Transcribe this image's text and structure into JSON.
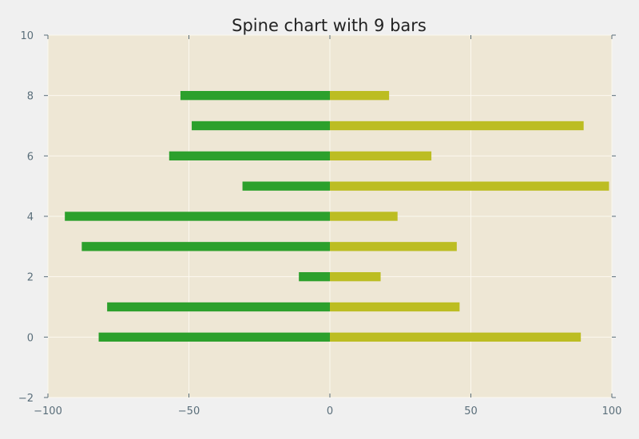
{
  "chart_data": {
    "type": "bar",
    "orientation": "horizontal",
    "title": "Spine chart with 9 bars",
    "xlabel": "",
    "ylabel": "",
    "xlim": [
      -100,
      100
    ],
    "ylim": [
      -2,
      10
    ],
    "x_ticks": [
      -100,
      -50,
      0,
      50,
      100
    ],
    "x_tick_labels": [
      "−100",
      "−50",
      "0",
      "50",
      "100"
    ],
    "y_ticks": [
      -2,
      0,
      2,
      4,
      6,
      8,
      10
    ],
    "y_tick_labels": [
      "−2",
      "0",
      "2",
      "4",
      "6",
      "8",
      "10"
    ],
    "grid": true,
    "legend": "none",
    "categories": [
      0,
      1,
      2,
      3,
      4,
      5,
      6,
      7,
      8
    ],
    "series": [
      {
        "color": "#2ca02c",
        "values": [
          -82,
          -79,
          -11,
          -88,
          -94,
          -31,
          -57,
          -49,
          -53
        ]
      },
      {
        "color": "#bcbd22",
        "values": [
          89,
          46,
          18,
          45,
          24,
          99,
          36,
          90,
          21
        ]
      }
    ]
  },
  "colors": {
    "page_background": "#f0f0f0",
    "plot_background": "#eee7d5",
    "grid": "#fbf8ef",
    "axis": "#5a6e7a",
    "title": "#222222"
  }
}
